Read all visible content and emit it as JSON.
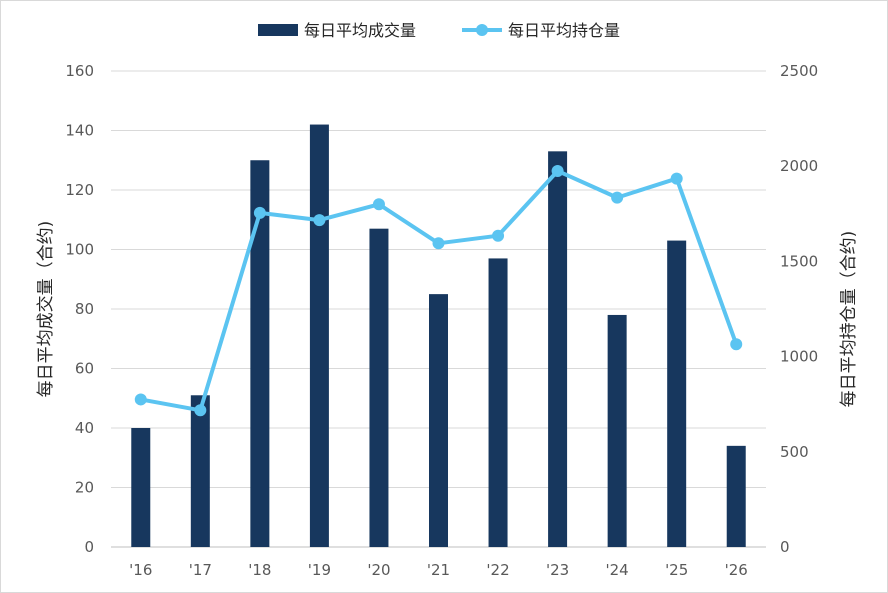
{
  "chart_data": {
    "type": "bar+line",
    "title": "",
    "categories": [
      "'16",
      "'17",
      "'18",
      "'19",
      "'20",
      "'21",
      "'22",
      "'23",
      "'24",
      "'25",
      "'26"
    ],
    "series": [
      {
        "name": "每日平均成交量",
        "type": "bar",
        "axis": "left",
        "color": "#17375e",
        "values": [
          40,
          51,
          130,
          142,
          107,
          85,
          97,
          133,
          78,
          103,
          34
        ]
      },
      {
        "name": "每日平均持仓量",
        "type": "line",
        "axis": "right",
        "color": "#5bc4f1",
        "values": [
          775,
          718,
          1755,
          1717,
          1800,
          1595,
          1635,
          1975,
          1835,
          1935,
          1065
        ]
      }
    ],
    "y_left": {
      "label": "每日平均成交量（合约)",
      "ylim": [
        0,
        160
      ],
      "ticks": [
        "0",
        "20",
        "40",
        "60",
        "80",
        "100",
        "120",
        "140",
        "160"
      ]
    },
    "y_right": {
      "label": "每日平均持仓量（合约)",
      "ylim": [
        0,
        2500
      ],
      "ticks": [
        "0",
        "500",
        "1000",
        "1500",
        "2000",
        "2500"
      ]
    },
    "grid": true,
    "legend_position": "top-center"
  }
}
